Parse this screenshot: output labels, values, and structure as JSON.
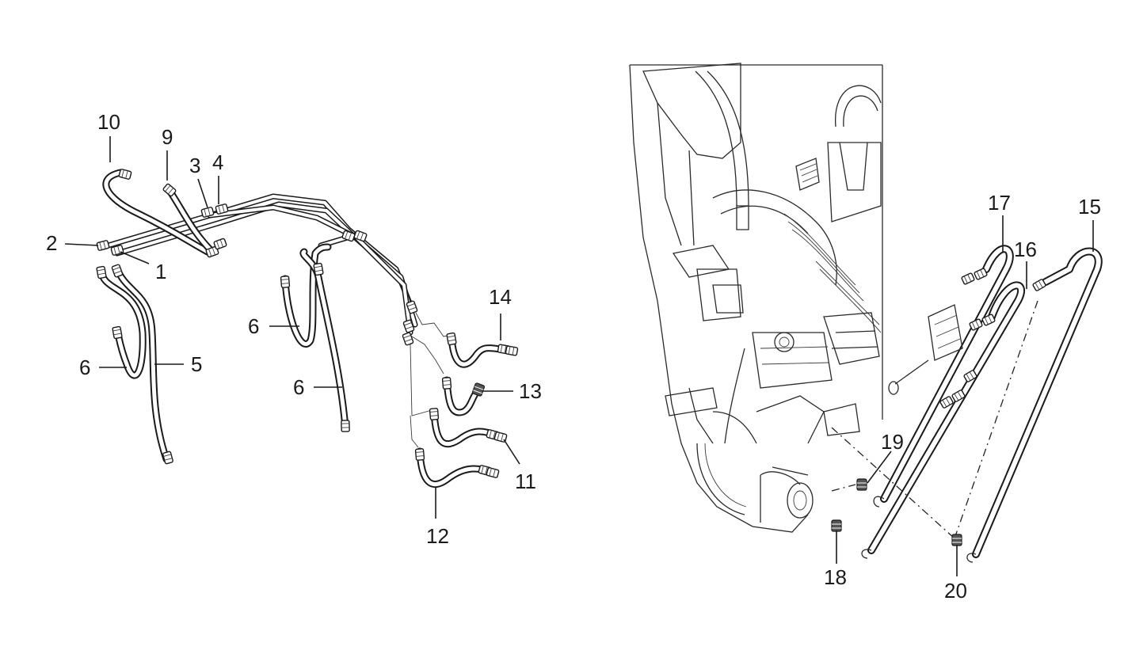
{
  "left_callouts": {
    "c1": "1",
    "c2": "2",
    "c3": "3",
    "c4": "4",
    "c5": "5",
    "c6a": "6",
    "c6b": "6",
    "c6c": "6",
    "c9": "9",
    "c10": "10",
    "c11": "11",
    "c12": "12",
    "c13": "13",
    "c14": "14"
  },
  "right_callouts": {
    "c15": "15",
    "c16": "16",
    "c17": "17",
    "c18": "18",
    "c19": "19",
    "c20": "20"
  },
  "colors": {
    "line": "#1a1a1a",
    "background": "#ffffff"
  }
}
